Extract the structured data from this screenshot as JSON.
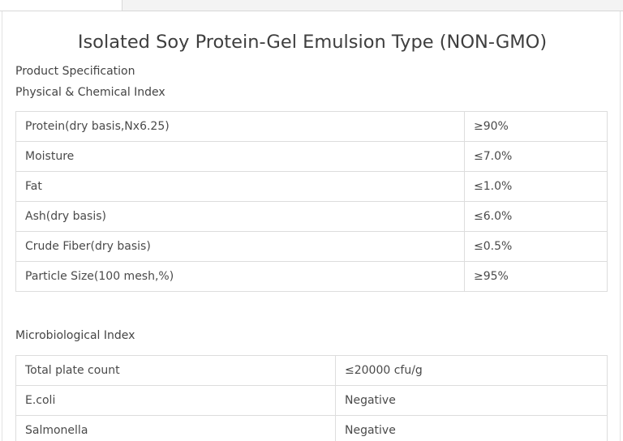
{
  "title": "Isolated Soy Protein-Gel Emulsion Type (NON-GMO)",
  "spec_heading": "Product Specification",
  "physical_heading": "Physical & Chemical Index",
  "physical_rows": [
    {
      "name": "Protein(dry basis,Nx6.25)",
      "value": "≥90%"
    },
    {
      "name": "Moisture",
      "value": "≤7.0%"
    },
    {
      "name": "Fat",
      "value": "≤1.0%"
    },
    {
      "name": "Ash(dry basis)",
      "value": "≤6.0%"
    },
    {
      "name": "Crude Fiber(dry basis)",
      "value": "≤0.5%"
    },
    {
      "name": "Particle Size(100 mesh,%)",
      "value": "≥95%"
    }
  ],
  "micro_heading": "Microbiological Index",
  "micro_rows": [
    {
      "name": "Total plate count",
      "value": "≤20000 cfu/g"
    },
    {
      "name": "E.coli",
      "value": "Negative"
    },
    {
      "name": "Salmonella",
      "value": "Negative"
    }
  ]
}
